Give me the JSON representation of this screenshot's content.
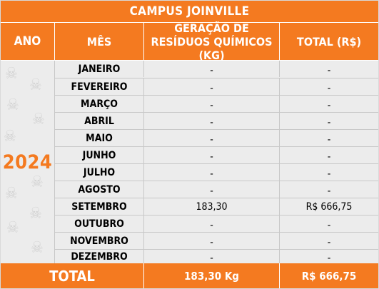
{
  "title": "CAMPUS JOINVILLE",
  "headers": {
    "ano": "ANO",
    "mes": "MÊS",
    "geracao_line1": "GERAÇÃO DE",
    "geracao_line2": "RESÍDUOS QUÍMICOS (KG)",
    "total": "TOTAL (R$)"
  },
  "year": "2024",
  "watermark_icon": "skull-crossbones-icon",
  "rows": [
    {
      "month": "JANEIRO",
      "generation": "-",
      "total": "-"
    },
    {
      "month": "FEVEREIRO",
      "generation": "-",
      "total": "-"
    },
    {
      "month": "MARÇO",
      "generation": "-",
      "total": "-"
    },
    {
      "month": "ABRIL",
      "generation": "-",
      "total": "-"
    },
    {
      "month": "MAIO",
      "generation": "-",
      "total": "-"
    },
    {
      "month": "JUNHO",
      "generation": "-",
      "total": "-"
    },
    {
      "month": "JULHO",
      "generation": "-",
      "total": "-"
    },
    {
      "month": "AGOSTO",
      "generation": "-",
      "total": "-"
    },
    {
      "month": "SETEMBRO",
      "generation": "183,30",
      "total": "R$ 666,75"
    },
    {
      "month": "OUTUBRO",
      "generation": "-",
      "total": "-"
    },
    {
      "month": "NOVEMBRO",
      "generation": "-",
      "total": "-"
    },
    {
      "month": "DEZEMBRO",
      "generation": "-",
      "total": "-"
    }
  ],
  "footer": {
    "label": "TOTAL",
    "generation": "183,30 Kg",
    "total": "R$ 666,75"
  },
  "colors": {
    "accent": "#f47a20",
    "body_background": "#ececec",
    "watermark": "#d3d3d3"
  }
}
